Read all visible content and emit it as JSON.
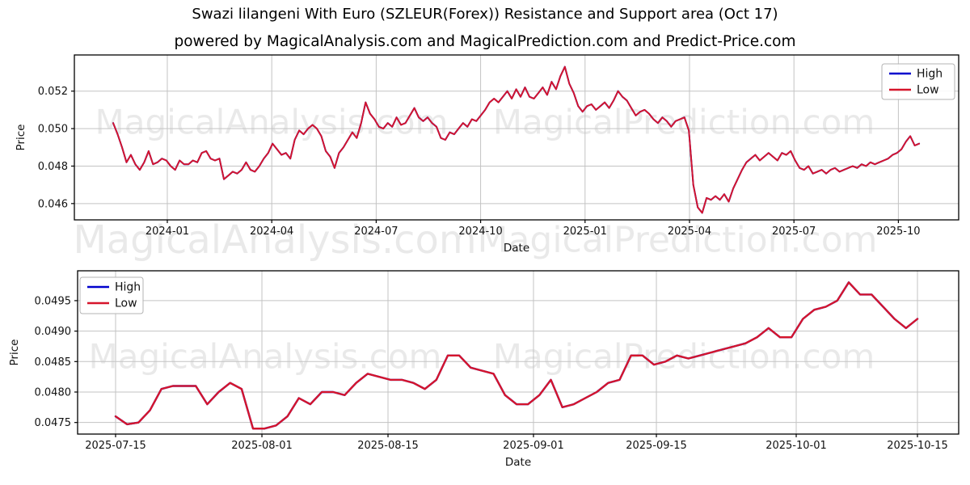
{
  "title": "Swazi lilangeni With Euro (SZLEUR(Forex)) Resistance and Support area (Oct 17)",
  "subtitle": "powered by MagicalAnalysis.com and MagicalPrediction.com and Predict-Price.com",
  "watermarks": {
    "left": "MagicalAnalysis.com",
    "right": "MagicalPrediction.com"
  },
  "colors": {
    "high": "#0000cd",
    "low": "#d6152b",
    "grid": "#c3c3c3",
    "spine": "#000000",
    "legend_border": "#b3b3b3"
  },
  "chart_data": [
    {
      "type": "line",
      "name": "resistance-support-full-history",
      "xlabel": "Date",
      "ylabel": "Price",
      "x_tick_labels": [
        "2024-01",
        "2024-04",
        "2024-07",
        "2024-10",
        "2025-01",
        "2025-04",
        "2025-07",
        "2025-10"
      ],
      "y_ticks": [
        {
          "value": 0.046,
          "label": "0.046"
        },
        {
          "value": 0.048,
          "label": "0.048"
        },
        {
          "value": 0.05,
          "label": "0.050"
        },
        {
          "value": 0.052,
          "label": "0.052"
        }
      ],
      "ylim": [
        0.04513,
        0.05393
      ],
      "grid": true,
      "legend": {
        "position": "upper right",
        "items": [
          {
            "label": "High",
            "color": "#0000cd"
          },
          {
            "label": "Low",
            "color": "#d6152b"
          }
        ]
      },
      "series": [
        {
          "name": "High",
          "color": "#0000cd",
          "coincides_with": "Low",
          "width": 2.0
        },
        {
          "name": "Low",
          "color": "#d6152b",
          "width": 1.9,
          "values": [
            0.0503,
            0.0497,
            0.049,
            0.0482,
            0.0486,
            0.0481,
            0.0478,
            0.0482,
            0.0488,
            0.0481,
            0.0482,
            0.0484,
            0.0483,
            0.048,
            0.0478,
            0.0483,
            0.0481,
            0.0481,
            0.0483,
            0.0482,
            0.0487,
            0.0488,
            0.0484,
            0.0483,
            0.0484,
            0.0473,
            0.0475,
            0.0477,
            0.0476,
            0.0478,
            0.0482,
            0.0478,
            0.0477,
            0.048,
            0.0484,
            0.0487,
            0.0492,
            0.0489,
            0.0486,
            0.0487,
            0.0484,
            0.0494,
            0.0499,
            0.0497,
            0.05,
            0.0502,
            0.05,
            0.0496,
            0.0488,
            0.0485,
            0.0479,
            0.0487,
            0.049,
            0.0494,
            0.0498,
            0.0495,
            0.0503,
            0.0514,
            0.0508,
            0.0505,
            0.0501,
            0.05,
            0.0503,
            0.0501,
            0.0506,
            0.0502,
            0.0503,
            0.0507,
            0.0511,
            0.0506,
            0.0504,
            0.0506,
            0.0503,
            0.0501,
            0.0495,
            0.0494,
            0.0498,
            0.0497,
            0.05,
            0.0503,
            0.0501,
            0.0505,
            0.0504,
            0.0507,
            0.051,
            0.0514,
            0.0516,
            0.0514,
            0.0517,
            0.052,
            0.0516,
            0.0521,
            0.0517,
            0.0522,
            0.0517,
            0.0516,
            0.0519,
            0.0522,
            0.0518,
            0.0525,
            0.0521,
            0.0528,
            0.0533,
            0.0524,
            0.0519,
            0.0512,
            0.0509,
            0.0512,
            0.0513,
            0.051,
            0.0512,
            0.0514,
            0.0511,
            0.0515,
            0.052,
            0.0517,
            0.0515,
            0.0511,
            0.0507,
            0.0509,
            0.051,
            0.0508,
            0.0505,
            0.0503,
            0.0506,
            0.0504,
            0.0501,
            0.0504,
            0.0505,
            0.0506,
            0.0499,
            0.047,
            0.0458,
            0.0455,
            0.0463,
            0.0462,
            0.0464,
            0.0462,
            0.0465,
            0.0461,
            0.0468,
            0.0473,
            0.0478,
            0.0482,
            0.0484,
            0.0486,
            0.0483,
            0.0485,
            0.0487,
            0.0485,
            0.0483,
            0.0487,
            0.0486,
            0.0488,
            0.0483,
            0.0479,
            0.0478,
            0.048,
            0.0476,
            0.0477,
            0.0478,
            0.0476,
            0.0478,
            0.0479,
            0.0477,
            0.0478,
            0.0479,
            0.048,
            0.0479,
            0.0481,
            0.048,
            0.0482,
            0.0481,
            0.0482,
            0.0483,
            0.0484,
            0.0486,
            0.0487,
            0.0489,
            0.0493,
            0.0496,
            0.0491,
            0.0492
          ]
        }
      ]
    },
    {
      "type": "line",
      "name": "resistance-support-recent-three-months",
      "xlabel": "Date",
      "ylabel": "Price",
      "x_tick_labels": [
        "2025-07-15",
        "2025-08-01",
        "2025-08-15",
        "2025-09-01",
        "2025-09-15",
        "2025-10-01",
        "2025-10-15"
      ],
      "y_ticks": [
        {
          "value": 0.0475,
          "label": "0.0475"
        },
        {
          "value": 0.048,
          "label": "0.0480"
        },
        {
          "value": 0.0485,
          "label": "0.0485"
        },
        {
          "value": 0.049,
          "label": "0.0490"
        },
        {
          "value": 0.0495,
          "label": "0.0495"
        }
      ],
      "ylim": [
        0.04731,
        0.04999
      ],
      "grid": true,
      "legend": {
        "position": "upper left",
        "items": [
          {
            "label": "High",
            "color": "#0000cd"
          },
          {
            "label": "Low",
            "color": "#d6152b"
          }
        ]
      },
      "series": [
        {
          "name": "High",
          "color": "#0000cd",
          "coincides_with": "Low",
          "width": 2.4
        },
        {
          "name": "Low",
          "color": "#d6152b",
          "width": 2.3,
          "values": [
            0.0476,
            0.04747,
            0.0475,
            0.0477,
            0.04805,
            0.0481,
            0.0481,
            0.0481,
            0.0478,
            0.048,
            0.04815,
            0.04805,
            0.0474,
            0.0474,
            0.04745,
            0.0476,
            0.0479,
            0.0478,
            0.048,
            0.048,
            0.04795,
            0.04815,
            0.0483,
            0.04825,
            0.0482,
            0.0482,
            0.04815,
            0.04805,
            0.0482,
            0.0486,
            0.0486,
            0.0484,
            0.04835,
            0.0483,
            0.04795,
            0.0478,
            0.0478,
            0.04795,
            0.0482,
            0.04775,
            0.0478,
            0.0479,
            0.048,
            0.04815,
            0.0482,
            0.0486,
            0.0486,
            0.04845,
            0.0485,
            0.0486,
            0.04855,
            0.0486,
            0.04865,
            0.0487,
            0.04875,
            0.0488,
            0.0489,
            0.04905,
            0.0489,
            0.0489,
            0.0492,
            0.04935,
            0.0494,
            0.0495,
            0.0498,
            0.0496,
            0.0496,
            0.0494,
            0.0492,
            0.04905,
            0.0492
          ]
        }
      ]
    }
  ]
}
